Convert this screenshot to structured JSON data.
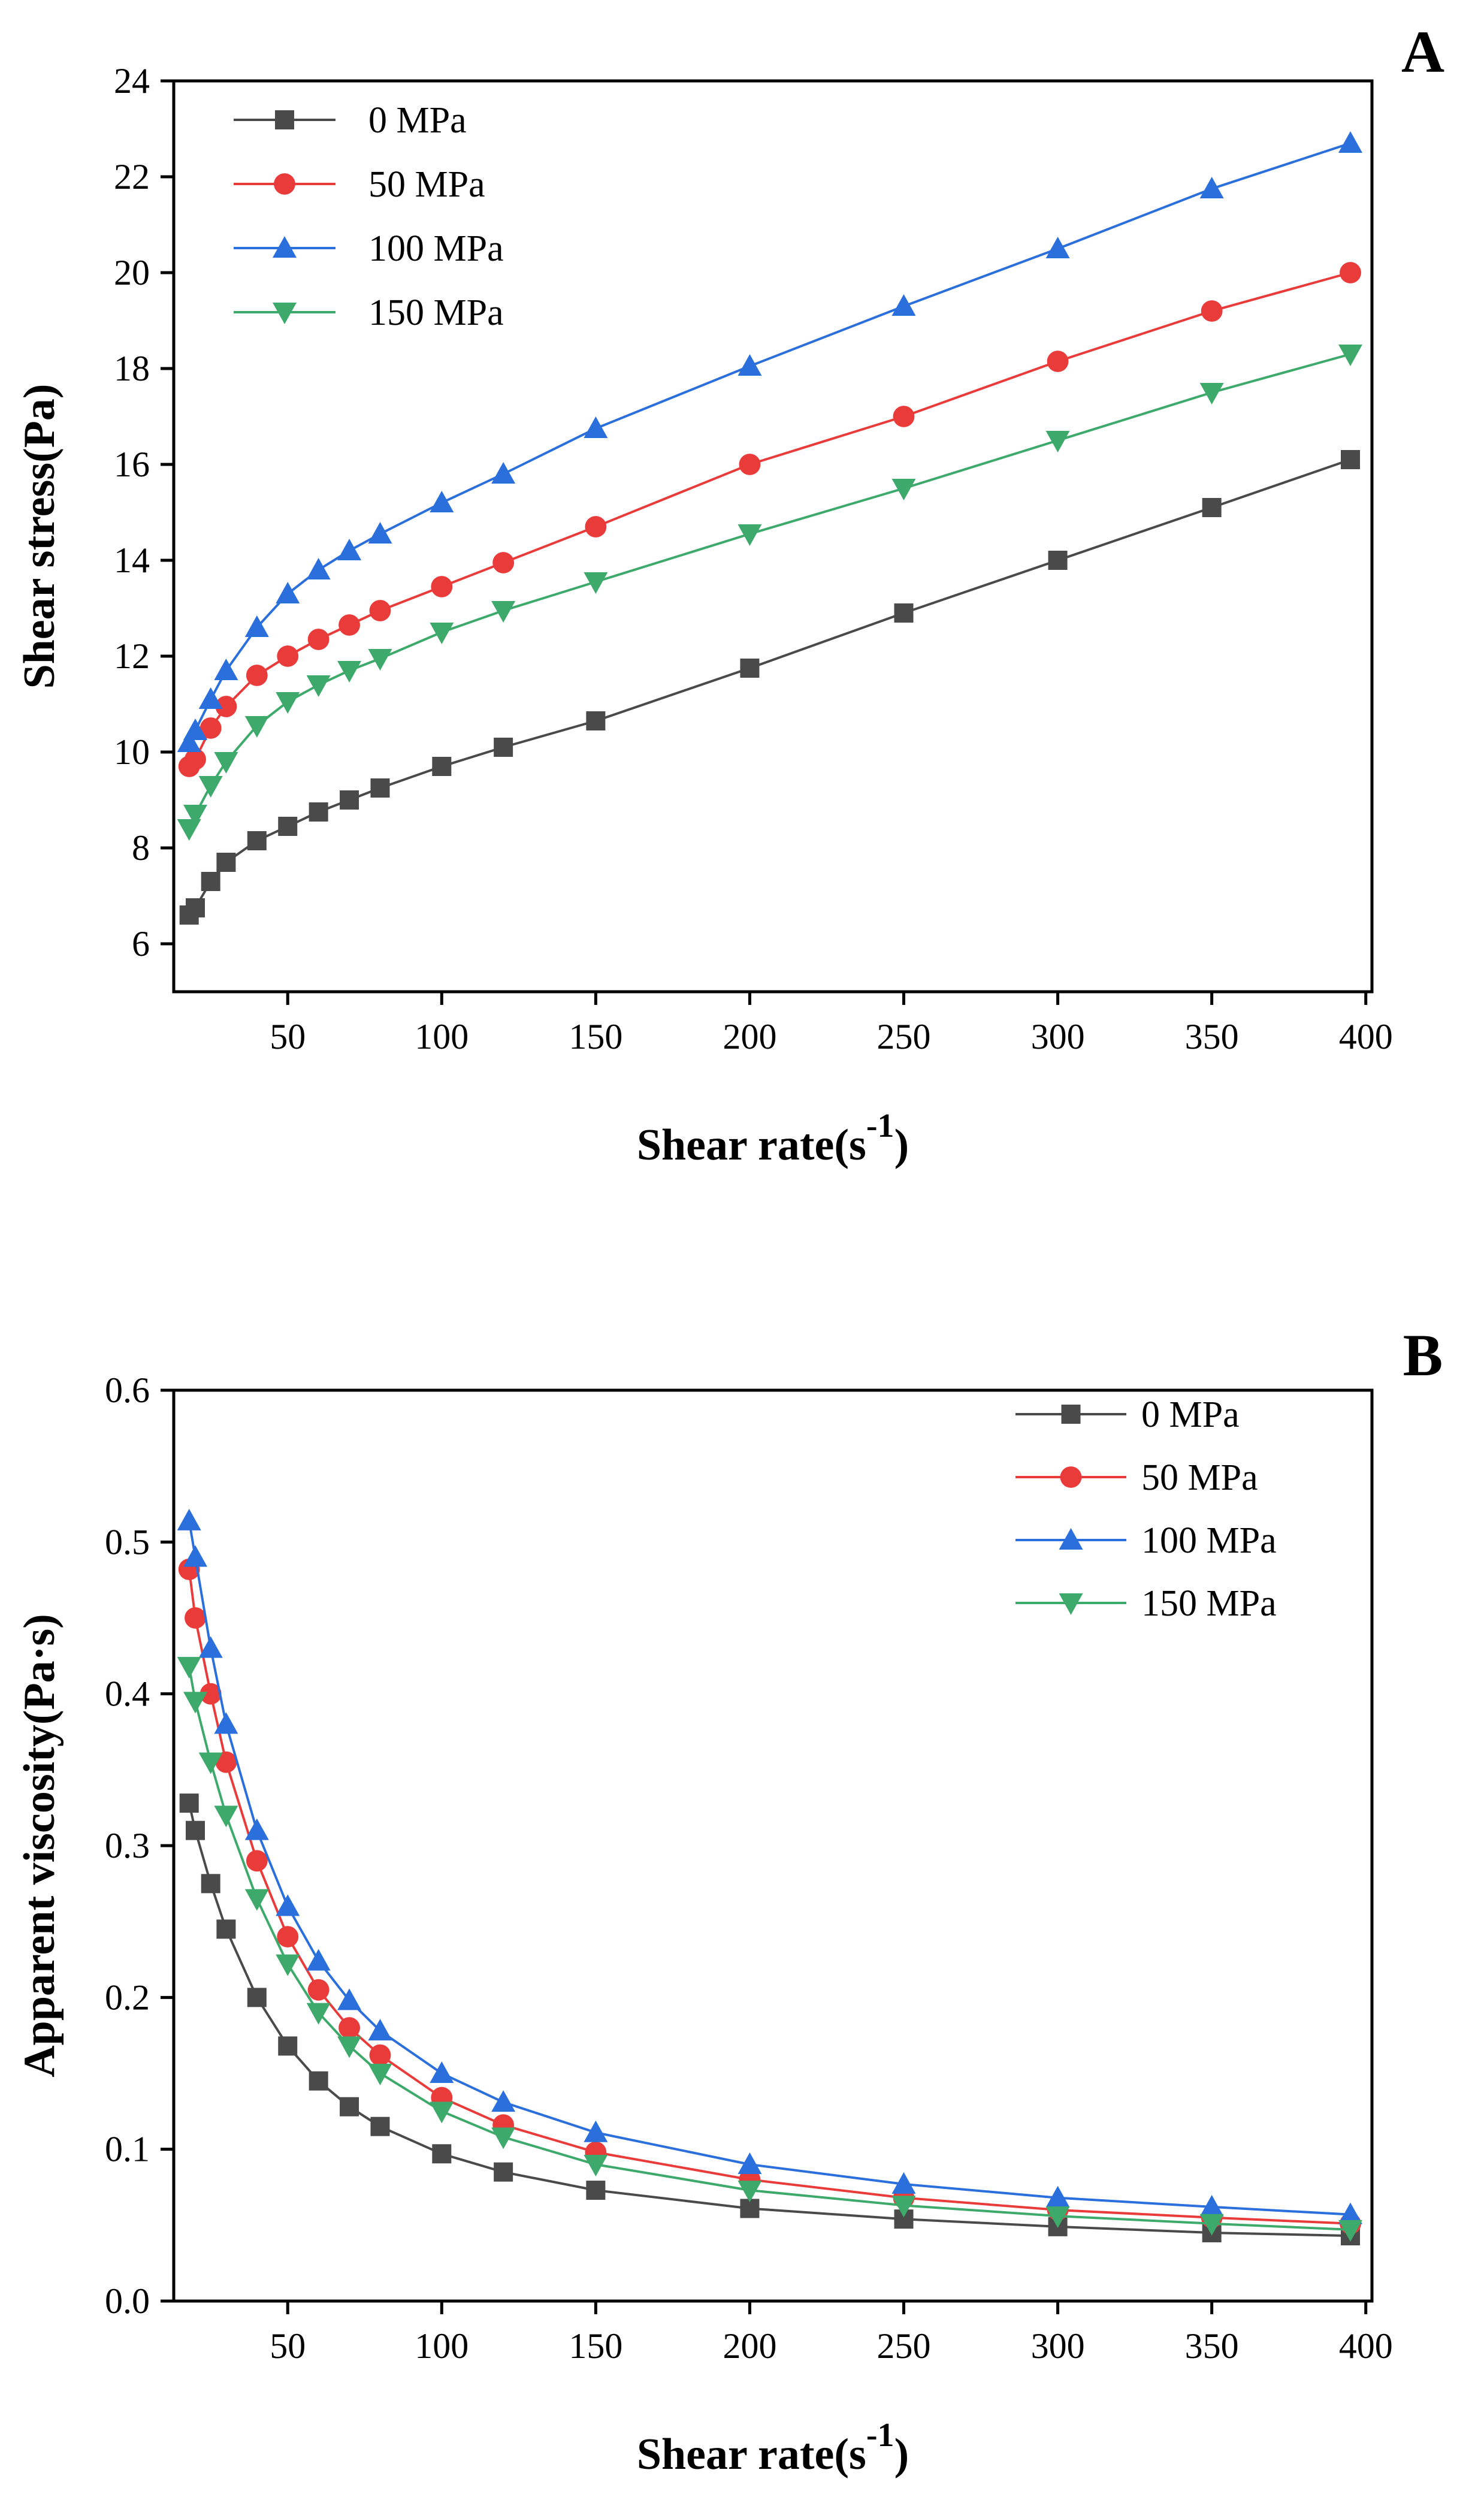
{
  "chart_data": [
    {
      "panel": "A",
      "type": "line",
      "xlabel": "Shear rate(s",
      "xlabel_sup": "-1",
      "xlabel_close": ")",
      "ylabel": "Shear stress(Pa)",
      "xlim": [
        13,
        402
      ],
      "ylim": [
        5.0,
        24.0
      ],
      "xticks": [
        50,
        100,
        150,
        200,
        250,
        300,
        350,
        400
      ],
      "yticks": [
        6,
        8,
        10,
        12,
        14,
        16,
        18,
        20,
        22,
        24
      ],
      "ytick_decimals": 0,
      "legend_position": "top-left",
      "series": [
        {
          "name": "0 MPa",
          "color": "#4a4a4a",
          "marker": "square",
          "x": [
            18,
            20,
            25,
            30,
            40,
            50,
            60,
            70,
            80,
            100,
            120,
            150,
            200,
            250,
            300,
            350,
            395
          ],
          "y": [
            6.6,
            6.75,
            7.3,
            7.7,
            8.15,
            8.45,
            8.75,
            9.0,
            9.25,
            9.7,
            10.1,
            10.65,
            11.75,
            12.9,
            14.0,
            15.1,
            16.1
          ]
        },
        {
          "name": "50 MPa",
          "color": "#ea3b3b",
          "marker": "circle",
          "x": [
            18,
            20,
            25,
            30,
            40,
            50,
            60,
            70,
            80,
            100,
            120,
            150,
            200,
            250,
            300,
            350,
            395
          ],
          "y": [
            9.7,
            9.85,
            10.5,
            10.95,
            11.6,
            12.0,
            12.35,
            12.65,
            12.95,
            13.45,
            13.95,
            14.7,
            16.0,
            17.0,
            18.15,
            19.2,
            20.0
          ]
        },
        {
          "name": "100 MPa",
          "color": "#2a6fdb",
          "marker": "triangle-up",
          "x": [
            18,
            20,
            25,
            30,
            40,
            50,
            60,
            70,
            80,
            100,
            120,
            150,
            200,
            250,
            300,
            350,
            395
          ],
          "y": [
            10.2,
            10.45,
            11.1,
            11.7,
            12.6,
            13.3,
            13.8,
            14.2,
            14.55,
            15.2,
            15.8,
            16.75,
            18.05,
            19.3,
            20.5,
            21.75,
            22.7
          ]
        },
        {
          "name": "150 MPa",
          "color": "#3daa6b",
          "marker": "triangle-down",
          "x": [
            18,
            20,
            25,
            30,
            40,
            50,
            60,
            70,
            80,
            100,
            120,
            150,
            200,
            250,
            300,
            350,
            395
          ],
          "y": [
            8.4,
            8.7,
            9.3,
            9.8,
            10.55,
            11.05,
            11.4,
            11.7,
            11.95,
            12.5,
            12.95,
            13.55,
            14.55,
            15.5,
            16.5,
            17.5,
            18.3
          ]
        }
      ]
    },
    {
      "panel": "B",
      "type": "line",
      "xlabel": "Shear rate(s",
      "xlabel_sup": "-1",
      "xlabel_close": ")",
      "ylabel": "Apparent viscosity(Pa·s)",
      "xlim": [
        13,
        402
      ],
      "ylim": [
        0.0,
        0.6
      ],
      "xticks": [
        50,
        100,
        150,
        200,
        250,
        300,
        350,
        400
      ],
      "yticks": [
        0.0,
        0.1,
        0.2,
        0.3,
        0.4,
        0.5,
        0.6
      ],
      "ytick_decimals": 1,
      "legend_position": "top-right",
      "series": [
        {
          "name": "0 MPa",
          "color": "#4a4a4a",
          "marker": "square",
          "x": [
            18,
            20,
            25,
            30,
            40,
            50,
            60,
            70,
            80,
            100,
            120,
            150,
            200,
            250,
            300,
            350,
            395
          ],
          "y": [
            0.328,
            0.31,
            0.275,
            0.245,
            0.2,
            0.168,
            0.145,
            0.128,
            0.115,
            0.097,
            0.085,
            0.073,
            0.061,
            0.054,
            0.049,
            0.045,
            0.043
          ]
        },
        {
          "name": "50 MPa",
          "color": "#ea3b3b",
          "marker": "circle",
          "x": [
            18,
            20,
            25,
            30,
            40,
            50,
            60,
            70,
            80,
            100,
            120,
            150,
            200,
            250,
            300,
            350,
            395
          ],
          "y": [
            0.482,
            0.45,
            0.4,
            0.355,
            0.29,
            0.24,
            0.205,
            0.18,
            0.162,
            0.134,
            0.116,
            0.098,
            0.08,
            0.068,
            0.06,
            0.055,
            0.051
          ]
        },
        {
          "name": "100 MPa",
          "color": "#2a6fdb",
          "marker": "triangle-up",
          "x": [
            18,
            20,
            25,
            30,
            40,
            50,
            60,
            70,
            80,
            100,
            120,
            150,
            200,
            250,
            300,
            350,
            395
          ],
          "y": [
            0.514,
            0.49,
            0.43,
            0.38,
            0.31,
            0.26,
            0.224,
            0.198,
            0.178,
            0.15,
            0.131,
            0.111,
            0.09,
            0.077,
            0.068,
            0.062,
            0.057
          ]
        },
        {
          "name": "150 MPa",
          "color": "#3daa6b",
          "marker": "triangle-down",
          "x": [
            18,
            20,
            25,
            30,
            40,
            50,
            60,
            70,
            80,
            100,
            120,
            150,
            200,
            250,
            300,
            350,
            395
          ],
          "y": [
            0.418,
            0.395,
            0.355,
            0.32,
            0.265,
            0.222,
            0.19,
            0.168,
            0.15,
            0.125,
            0.108,
            0.09,
            0.073,
            0.063,
            0.056,
            0.051,
            0.047
          ]
        }
      ]
    }
  ]
}
